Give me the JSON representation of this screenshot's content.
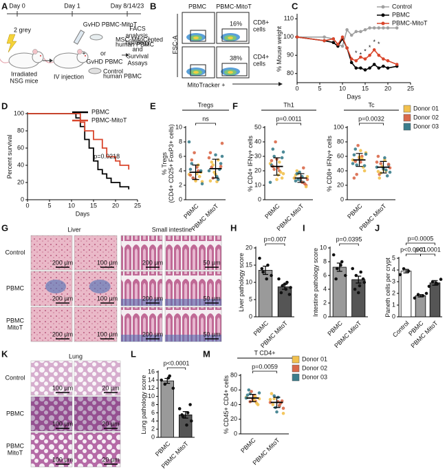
{
  "panel_labels": [
    "A",
    "B",
    "C",
    "D",
    "E",
    "F",
    "G",
    "H",
    "I",
    "J",
    "K",
    "L",
    "M"
  ],
  "panel_a": {
    "days": [
      "Day 0",
      "Day 1",
      "Day 8/14/23"
    ],
    "irradiation": "2 grey",
    "mice_label": [
      "Irradiated",
      "NSG mice"
    ],
    "injection": "IV injection",
    "plus": "+",
    "mitot_title": "GvHD PBMC-MitoT",
    "mitot_sub": [
      "MSC-MitoCepted",
      "human PBMC"
    ],
    "or": "or",
    "pbmc_title": "GvHD PBMC",
    "pbmc_sub": [
      "Control",
      "human PBMC"
    ],
    "readout": [
      "FACS",
      "analysis,",
      "histology",
      "and",
      "Survival",
      "Assays"
    ]
  },
  "panel_b": {
    "columns": [
      "PBMC",
      "PBMC-MitoT"
    ],
    "rows": [
      [
        "CD8+",
        "cells"
      ],
      [
        "CD4+",
        "cells"
      ]
    ],
    "percents": [
      "16%",
      "38%"
    ],
    "y_label": "FSC-A",
    "x_label": "MitoTracker +"
  },
  "panel_g": {
    "columns": [
      "Liver",
      "Small intestine"
    ],
    "rows": [
      [
        "Control"
      ],
      [
        "PBMC"
      ],
      [
        "PBMC",
        "MitoT"
      ]
    ],
    "scale_bars": [
      "200 µm",
      "100 µm",
      "200 µm",
      "50 µm"
    ]
  },
  "panel_k": {
    "title": "Lung",
    "rows": [
      [
        "Control"
      ],
      [
        "PBMC"
      ],
      [
        "PBMC",
        "MitoT"
      ]
    ],
    "scale_bars": [
      "100 µm",
      "20 µm"
    ]
  },
  "donor_legend": {
    "names": [
      "Donor 01",
      "Donor 02",
      "Donor 03"
    ],
    "colors": [
      "#f2c14e",
      "#d9694a",
      "#3a7d8c"
    ]
  },
  "chart_data": [
    {
      "type": "line",
      "xlabel": "Days",
      "ylabel": "% Mouse weight",
      "x": [
        0,
        6,
        8,
        9,
        10,
        11,
        12,
        13,
        14,
        15,
        16,
        17,
        18,
        19,
        20,
        22
      ],
      "xlim": [
        0,
        25
      ],
      "xticks": [
        0,
        5,
        10,
        15,
        20,
        25
      ],
      "ylim": [
        75,
        112
      ],
      "yticks": [
        80,
        90,
        100,
        110
      ],
      "series": [
        {
          "name": "Control",
          "color": "#a0a0a0",
          "values": [
            100,
            100,
            99,
            96,
            95,
            104,
            101,
            103,
            103,
            104,
            105,
            105,
            105,
            105,
            105,
            105
          ]
        },
        {
          "name": "PBMC",
          "color": "#000000",
          "values": [
            100,
            98,
            97,
            95,
            99,
            94,
            86,
            83,
            83,
            82,
            83,
            85,
            83,
            84,
            83,
            84
          ]
        },
        {
          "name": "PBMC-MitoT",
          "color": "#d9452b",
          "values": [
            100,
            98,
            99,
            96,
            100,
            94,
            88,
            87,
            89,
            88,
            90,
            93,
            90,
            88,
            87,
            85
          ]
        }
      ],
      "annotations": [
        {
          "text": "*",
          "x": 13,
          "y": 91
        },
        {
          "text": "*",
          "x": 14,
          "y": 90
        },
        {
          "text": "*",
          "x": 15,
          "y": 92
        },
        {
          "text": "*",
          "x": 16,
          "y": 94
        },
        {
          "text": "*",
          "x": 17,
          "y": 97
        },
        {
          "text": "*",
          "x": 18,
          "y": 96
        }
      ]
    },
    {
      "type": "step",
      "xlabel": "Days",
      "ylabel": "Percent survival",
      "xlim": [
        0,
        25
      ],
      "xticks": [
        0,
        5,
        10,
        15,
        20,
        25
      ],
      "ylim": [
        0,
        100
      ],
      "yticks": [
        0,
        20,
        40,
        60,
        80,
        100
      ],
      "series": [
        {
          "name": "PBMC",
          "color": "#000000",
          "x": [
            0,
            11,
            12,
            13,
            14,
            15,
            16,
            17,
            18,
            19,
            21,
            23
          ],
          "values": [
            100,
            95,
            85,
            70,
            60,
            45,
            35,
            30,
            25,
            20,
            15,
            12
          ]
        },
        {
          "name": "PBMC-MitoT",
          "color": "#d9452b",
          "x": [
            0,
            12,
            13,
            15,
            17,
            18,
            20,
            21,
            23
          ],
          "values": [
            100,
            90,
            80,
            70,
            60,
            50,
            45,
            40,
            35
          ]
        }
      ],
      "annotations": [
        {
          "text": "p=0.0218",
          "x": 18,
          "y": 50
        }
      ]
    },
    {
      "type": "dotplot",
      "title": "Tregs",
      "ylabel": [
        "% Tregs",
        "(CD4+ CD25+ FoxP3+ cells)"
      ],
      "categories": [
        "PBMC",
        "PBMC MitoT"
      ],
      "ylim": [
        0,
        10
      ],
      "yticks": [
        0,
        2,
        4,
        6,
        8,
        10
      ],
      "points": [
        [
          3.5,
          4,
          3,
          2.5,
          4.5,
          5,
          3.8,
          2.8,
          4.2,
          3.2,
          6.5,
          8,
          4.8,
          3,
          2.2,
          3.6,
          5.5,
          4,
          2.6,
          3.4
        ],
        [
          4,
          5.5,
          3,
          6,
          2.5,
          4.5,
          5,
          3.5,
          6.5,
          4.2,
          3.8,
          5.8,
          2.8,
          4.8,
          7.8,
          3.2,
          5.2,
          4.6,
          6.2,
          2.6
        ]
      ],
      "donors": [
        [
          0,
          1,
          2,
          0,
          1,
          2,
          0,
          1,
          2,
          0,
          1,
          2,
          0,
          1,
          2,
          0,
          1,
          2,
          0,
          1
        ],
        [
          2,
          0,
          1,
          2,
          0,
          1,
          2,
          0,
          1,
          2,
          0,
          1,
          2,
          0,
          1,
          2,
          0,
          1,
          2,
          0
        ]
      ],
      "means": [
        3.8,
        4.3
      ],
      "errors": [
        1.0,
        1.3
      ],
      "comparisons": [
        {
          "text": "ns",
          "between": [
            0,
            1
          ]
        }
      ]
    },
    {
      "type": "dotplot",
      "title": "Th1",
      "ylabel": [
        "% CD4+ IFNγ+ cells"
      ],
      "categories": [
        "PBMC",
        "PBMC MitoT"
      ],
      "ylim": [
        0,
        50
      ],
      "yticks": [
        0,
        10,
        20,
        30,
        40,
        50
      ],
      "points": [
        [
          25,
          20,
          30,
          18,
          22,
          35,
          15,
          28,
          24,
          19,
          40,
          12,
          26,
          21,
          33,
          17,
          23,
          29,
          14,
          27
        ],
        [
          15,
          12,
          18,
          14,
          16,
          20,
          10,
          13,
          17,
          11,
          19,
          15,
          22,
          14,
          16,
          12,
          18,
          9,
          15,
          13
        ]
      ],
      "donors": [
        [
          0,
          1,
          2,
          0,
          1,
          2,
          0,
          1,
          2,
          0,
          1,
          2,
          0,
          1,
          2,
          0,
          1,
          2,
          0,
          1
        ],
        [
          1,
          2,
          0,
          1,
          2,
          0,
          1,
          2,
          0,
          1,
          2,
          0,
          1,
          2,
          0,
          1,
          2,
          0,
          1,
          2
        ]
      ],
      "means": [
        23,
        15
      ],
      "errors": [
        6,
        3
      ],
      "comparisons": [
        {
          "text": "p=0.0011",
          "between": [
            0,
            1
          ]
        }
      ]
    },
    {
      "type": "dotplot",
      "title": "Tc",
      "ylabel": [
        "% CD8+ IFNγ+ cells"
      ],
      "categories": [
        "PBMC",
        "PBMC MitoT"
      ],
      "ylim": [
        0,
        100
      ],
      "yticks": [
        0,
        20,
        40,
        60,
        80,
        100
      ],
      "points": [
        [
          55,
          60,
          48,
          65,
          52,
          70,
          40,
          58,
          62,
          45,
          75,
          50,
          57,
          35,
          63,
          68,
          53,
          47,
          59,
          30
        ],
        [
          45,
          40,
          50,
          38,
          55,
          35,
          48,
          42,
          60,
          33,
          46,
          52,
          41,
          37,
          44,
          58,
          30,
          49,
          43,
          39
        ]
      ],
      "donors": [
        [
          0,
          1,
          2,
          0,
          1,
          2,
          0,
          1,
          2,
          0,
          1,
          2,
          0,
          1,
          2,
          0,
          1,
          2,
          0,
          1
        ],
        [
          2,
          0,
          1,
          2,
          0,
          1,
          2,
          0,
          1,
          2,
          0,
          1,
          2,
          0,
          1,
          2,
          0,
          1,
          2,
          0
        ]
      ],
      "means": [
        55,
        45
      ],
      "errors": [
        9,
        8
      ],
      "comparisons": [
        {
          "text": "p=0.0032",
          "between": [
            0,
            1
          ]
        }
      ]
    },
    {
      "type": "bar",
      "ylabel": "Liver pathology score",
      "categories": [
        "PBMC",
        "PBMC MitoT"
      ],
      "colors": [
        "#9a9a9a",
        "#555555"
      ],
      "ylim": [
        0,
        20
      ],
      "yticks": [
        0,
        5,
        10,
        15,
        20
      ],
      "values": [
        13.5,
        8.7
      ],
      "errors": [
        1.2,
        0.7
      ],
      "points": [
        [
          17,
          15,
          13,
          12,
          11,
          14
        ],
        [
          11,
          10,
          9,
          8.5,
          8,
          7,
          6.5,
          9.5
        ]
      ],
      "comparisons": [
        {
          "text": "p=0.007",
          "between": [
            0,
            1
          ]
        }
      ]
    },
    {
      "type": "bar",
      "ylabel": "Intestine pathology score",
      "categories": [
        "PBMC",
        "PBMC MitoT"
      ],
      "colors": [
        "#9a9a9a",
        "#555555"
      ],
      "ylim": [
        0,
        10
      ],
      "yticks": [
        0,
        2,
        4,
        6,
        8,
        10
      ],
      "values": [
        7.2,
        5.4
      ],
      "errors": [
        0.6,
        0.5
      ],
      "points": [
        [
          9,
          8,
          7,
          6,
          7.5,
          5.5
        ],
        [
          7,
          6.5,
          6,
          5,
          4.5,
          4,
          5.5,
          3.5
        ]
      ],
      "comparisons": [
        {
          "text": "p=0.0395",
          "between": [
            0,
            1
          ]
        }
      ]
    },
    {
      "type": "bar",
      "ylabel": "Paneth cells per crypt",
      "categories": [
        "Control",
        "PBMC",
        "PBMC MitoT"
      ],
      "colors": [
        "#ffffff",
        "#9a9a9a",
        "#555555"
      ],
      "ylim": [
        0,
        5
      ],
      "yticks": [
        0,
        1,
        2,
        3,
        4,
        5
      ],
      "values": [
        3.9,
        1.8,
        2.9
      ],
      "errors": [
        0.15,
        0.1,
        0.2
      ],
      "points": [
        [
          3.6,
          3.9,
          4.1
        ],
        [
          1.6,
          1.8,
          1.9,
          2.0
        ],
        [
          2.6,
          2.8,
          3,
          3.2,
          2.9
        ]
      ],
      "comparisons": [
        {
          "text": "p=0.0005",
          "between": [
            0,
            2
          ]
        },
        {
          "text": "p<0.0001",
          "between": [
            0,
            1
          ]
        },
        {
          "text": "p<0.0001",
          "between": [
            1,
            2
          ]
        }
      ]
    },
    {
      "type": "bar",
      "ylabel": "Lung pathology score",
      "categories": [
        "PBMC",
        "PBMC MitoT"
      ],
      "colors": [
        "#9a9a9a",
        "#555555"
      ],
      "ylim": [
        0,
        16
      ],
      "yticks": [
        0,
        2,
        4,
        6,
        8,
        10,
        12,
        14,
        16
      ],
      "values": [
        13.8,
        5.5
      ],
      "errors": [
        0.6,
        0.8
      ],
      "points": [
        [
          14,
          15,
          13,
          12,
          14.5
        ],
        [
          7,
          6,
          5,
          4,
          3,
          5.5,
          8
        ]
      ],
      "comparisons": [
        {
          "text": "p<0.0001",
          "between": [
            0,
            1
          ]
        }
      ]
    },
    {
      "type": "dotplot",
      "title": "T CD4+",
      "ylabel": [
        "% CD45+ CD4+ cells"
      ],
      "categories": [
        "PBMC",
        "PBMC MitoT"
      ],
      "ylim": [
        0,
        80
      ],
      "yticks": [
        0,
        20,
        40,
        60,
        80
      ],
      "points": [
        [
          50,
          45,
          55,
          48,
          52,
          60,
          40,
          47,
          53,
          42,
          58,
          49,
          51,
          44,
          56,
          46
        ],
        [
          43,
          38,
          48,
          35,
          50,
          40,
          45,
          30,
          55,
          42,
          36,
          47,
          39,
          52,
          28,
          44
        ]
      ],
      "donors": [
        [
          0,
          1,
          2,
          0,
          1,
          2,
          0,
          1,
          2,
          0,
          1,
          2,
          0,
          1,
          2,
          0
        ],
        [
          1,
          2,
          0,
          1,
          2,
          0,
          1,
          2,
          0,
          1,
          2,
          0,
          1,
          2,
          0,
          1
        ]
      ],
      "means": [
        49,
        43
      ],
      "errors": [
        5,
        7
      ],
      "comparisons": [
        {
          "text": "p=0.0059",
          "between": [
            0,
            1
          ]
        }
      ]
    }
  ]
}
